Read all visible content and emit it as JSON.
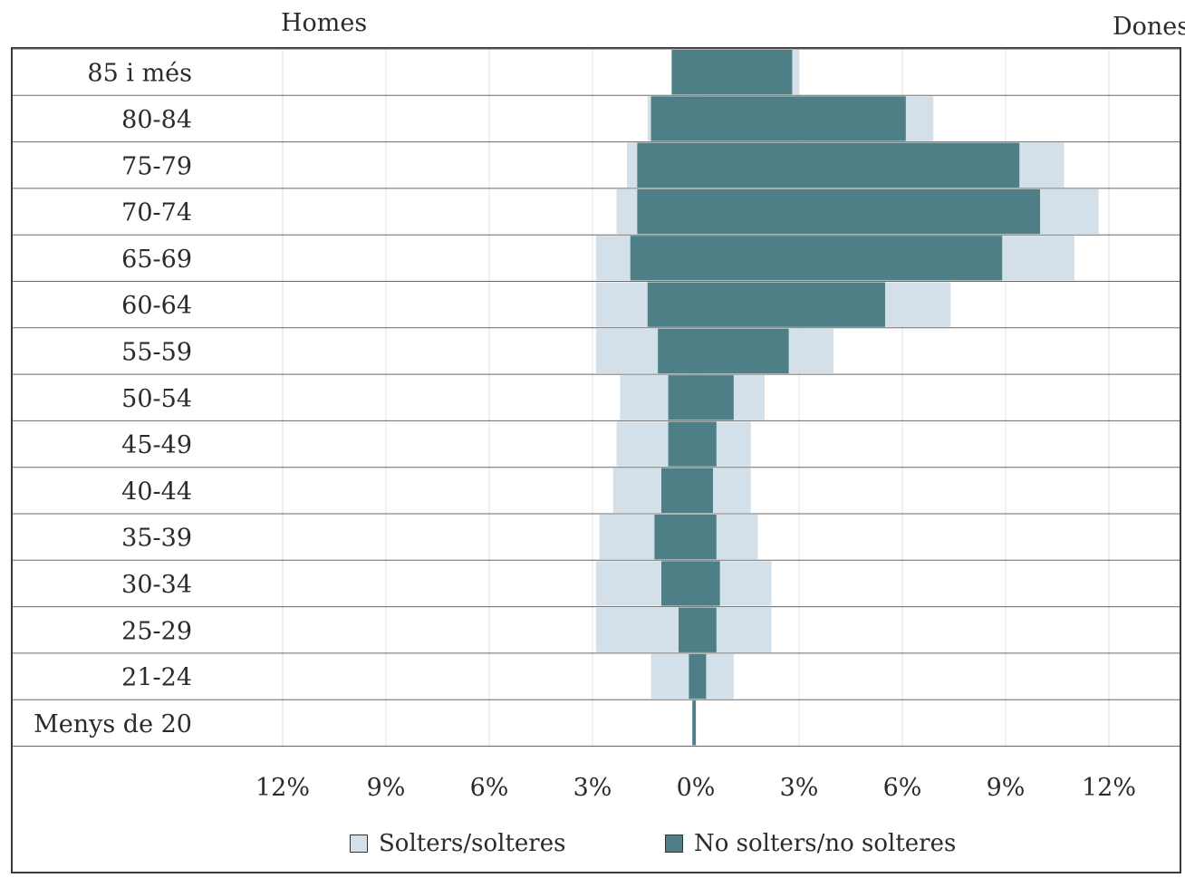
{
  "header": {
    "left_label": "Homes",
    "right_label": "Dones"
  },
  "legend": {
    "single_label": "Solters/solteres",
    "married_label": "No solters/no solteres"
  },
  "colors": {
    "single": "#d3e0ea",
    "married": "#4e7f86",
    "frame": "#3a3a3a",
    "grid": "#e2e2e2"
  },
  "chart_data": {
    "type": "bar",
    "orientation": "horizontal-pyramid",
    "categories": [
      "Menys de 20",
      "21-24",
      "25-29",
      "30-34",
      "35-39",
      "40-44",
      "45-49",
      "50-54",
      "55-59",
      "60-64",
      "65-69",
      "70-74",
      "75-79",
      "80-84",
      "85 i més"
    ],
    "x_ticks": [
      "12%",
      "9%",
      "6%",
      "3%",
      "0%",
      "3%",
      "6%",
      "9%",
      "12%"
    ],
    "xlim": [
      -12,
      12
    ],
    "unit": "%",
    "series": [
      {
        "name": "Solters/solteres",
        "side": "Homes",
        "values": [
          0.1,
          1.3,
          2.9,
          2.9,
          2.8,
          2.4,
          2.3,
          2.2,
          2.9,
          2.9,
          2.9,
          2.3,
          2.0,
          1.4,
          0.7
        ]
      },
      {
        "name": "No solters/no solteres",
        "side": "Homes",
        "values": [
          0.1,
          0.2,
          0.5,
          1.0,
          1.2,
          1.0,
          0.8,
          0.8,
          1.1,
          1.4,
          1.9,
          1.7,
          1.7,
          1.3,
          0.7
        ]
      },
      {
        "name": "Solters/solteres",
        "side": "Dones",
        "values": [
          0.0,
          1.1,
          2.2,
          2.2,
          1.8,
          1.6,
          1.6,
          2.0,
          4.0,
          7.4,
          11.0,
          11.7,
          10.7,
          6.9,
          3.0
        ]
      },
      {
        "name": "No solters/no solteres",
        "side": "Dones",
        "values": [
          0.0,
          0.3,
          0.6,
          0.7,
          0.6,
          0.5,
          0.6,
          1.1,
          2.7,
          5.5,
          8.9,
          10.0,
          9.4,
          6.1,
          2.8
        ]
      }
    ]
  }
}
